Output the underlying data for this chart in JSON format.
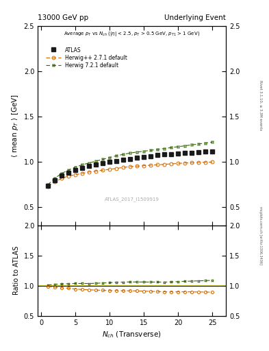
{
  "title_left": "13000 GeV pp",
  "title_right": "Underlying Event",
  "watermark": "ATLAS_2017_I1509919",
  "ylabel_main": "$\\langle$ mean $p_T$ $\\rangle$ [GeV]",
  "ylabel_ratio": "Ratio to ATLAS",
  "xlabel": "$N_{ch}$ (Transverse)",
  "right_label_top": "Rivet 3.1.10, ≥ 3.3M events",
  "right_label_bottom": "mcplots.cern.ch [arXiv:1306.3436]",
  "ylim_main": [
    0.3,
    2.5
  ],
  "ylim_ratio": [
    0.5,
    2.0
  ],
  "xlim": [
    -0.5,
    27
  ],
  "atlas_x": [
    1,
    2,
    3,
    4,
    5,
    6,
    7,
    8,
    9,
    10,
    11,
    12,
    13,
    14,
    15,
    16,
    17,
    18,
    19,
    20,
    21,
    22,
    23,
    24,
    25
  ],
  "atlas_y": [
    0.74,
    0.8,
    0.85,
    0.88,
    0.91,
    0.935,
    0.955,
    0.97,
    0.985,
    1.0,
    1.01,
    1.025,
    1.035,
    1.045,
    1.055,
    1.065,
    1.075,
    1.085,
    1.09,
    1.095,
    1.1,
    1.105,
    1.11,
    1.115,
    1.12
  ],
  "herwig_pp_x": [
    1,
    2,
    3,
    4,
    5,
    6,
    7,
    8,
    9,
    10,
    11,
    12,
    13,
    14,
    15,
    16,
    17,
    18,
    19,
    20,
    21,
    22,
    23,
    24,
    25
  ],
  "herwig_pp_y": [
    0.73,
    0.78,
    0.82,
    0.845,
    0.86,
    0.875,
    0.89,
    0.9,
    0.91,
    0.92,
    0.93,
    0.94,
    0.95,
    0.955,
    0.96,
    0.965,
    0.97,
    0.975,
    0.98,
    0.985,
    0.99,
    0.993,
    0.996,
    0.998,
    1.0
  ],
  "herwig72_x": [
    1,
    2,
    3,
    4,
    5,
    6,
    7,
    8,
    9,
    10,
    11,
    12,
    13,
    14,
    15,
    16,
    17,
    18,
    19,
    20,
    21,
    22,
    23,
    24,
    25
  ],
  "herwig72_y": [
    0.75,
    0.82,
    0.875,
    0.91,
    0.945,
    0.97,
    0.99,
    1.01,
    1.03,
    1.05,
    1.07,
    1.085,
    1.1,
    1.11,
    1.12,
    1.13,
    1.14,
    1.15,
    1.16,
    1.17,
    1.18,
    1.19,
    1.2,
    1.21,
    1.22
  ],
  "atlas_color": "#1a1a1a",
  "herwig_pp_color": "#cc6600",
  "herwig72_color": "#336600",
  "ratio_herwig_pp": [
    0.99,
    0.975,
    0.965,
    0.96,
    0.945,
    0.937,
    0.932,
    0.928,
    0.924,
    0.92,
    0.921,
    0.917,
    0.918,
    0.914,
    0.911,
    0.907,
    0.904,
    0.9,
    0.899,
    0.899,
    0.9,
    0.898,
    0.897,
    0.896,
    0.893
  ],
  "ratio_herwig72": [
    1.01,
    1.025,
    1.03,
    1.034,
    1.038,
    1.038,
    1.037,
    1.041,
    1.046,
    1.05,
    1.059,
    1.059,
    1.063,
    1.062,
    1.062,
    1.061,
    1.061,
    1.06,
    1.064,
    1.069,
    1.073,
    1.077,
    1.081,
    1.085,
    1.089
  ],
  "yticks_main": [
    0.5,
    1.0,
    1.5,
    2.0,
    2.5
  ],
  "yticks_ratio": [
    0.5,
    1.0,
    1.5,
    2.0
  ]
}
